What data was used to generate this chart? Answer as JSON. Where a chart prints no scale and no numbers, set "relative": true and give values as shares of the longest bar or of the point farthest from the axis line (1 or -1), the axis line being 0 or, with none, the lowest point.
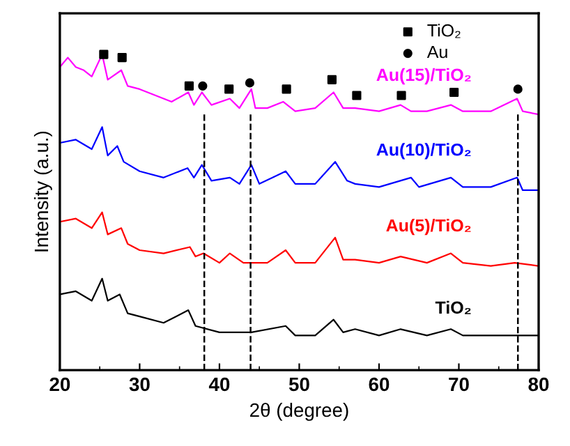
{
  "chart_data": {
    "type": "line",
    "relative": true,
    "xlabel": "2θ (degree)",
    "ylabel": "Intensity (a.u.)",
    "xlim": [
      20,
      80
    ],
    "xticks": [
      20,
      30,
      40,
      50,
      60,
      70,
      80
    ],
    "grid": false,
    "legend": "top right",
    "marker": "none",
    "line_style": "solid",
    "tick_labels": "x",
    "series": [
      {
        "name": "Au(15)/TiO₂",
        "color": "#ff00ff",
        "x": [
          20,
          21,
          22,
          23,
          24,
          25.3,
          26,
          27.7,
          28.5,
          30,
          32,
          34,
          36.1,
          36.8,
          37.8,
          39,
          41.3,
          42.5,
          44,
          44.5,
          46,
          48,
          49.5,
          52,
          54.3,
          55.5,
          57,
          60,
          62.7,
          64,
          66,
          69,
          70.5,
          74,
          77.3,
          78,
          80
        ],
        "values": [
          0.96,
          0.99,
          0.96,
          0.95,
          0.93,
          1.0,
          0.92,
          0.95,
          0.9,
          0.89,
          0.87,
          0.85,
          0.88,
          0.84,
          0.88,
          0.84,
          0.86,
          0.83,
          0.89,
          0.83,
          0.83,
          0.85,
          0.82,
          0.83,
          0.88,
          0.83,
          0.83,
          0.82,
          0.84,
          0.82,
          0.82,
          0.84,
          0.82,
          0.82,
          0.86,
          0.82,
          0.81
        ]
      },
      {
        "name": "Au(10)/TiO₂",
        "color": "#0000ff",
        "x": [
          20,
          22,
          24,
          25.3,
          26,
          27.2,
          28,
          30,
          33,
          36,
          36.8,
          37.8,
          39,
          41.3,
          42.5,
          44,
          45,
          48.3,
          49.5,
          52,
          54.5,
          56,
          57,
          60,
          64,
          65,
          69,
          70.5,
          74,
          77.3,
          78,
          80
        ],
        "values": [
          0.72,
          0.73,
          0.7,
          0.77,
          0.68,
          0.71,
          0.66,
          0.63,
          0.61,
          0.64,
          0.61,
          0.65,
          0.6,
          0.61,
          0.59,
          0.65,
          0.59,
          0.63,
          0.59,
          0.59,
          0.66,
          0.6,
          0.59,
          0.58,
          0.61,
          0.58,
          0.61,
          0.58,
          0.58,
          0.61,
          0.57,
          0.57
        ]
      },
      {
        "name": "Au(5)/TiO₂",
        "color": "#ff0000",
        "x": [
          20,
          22,
          24,
          25.3,
          26,
          27.7,
          28.5,
          30,
          33,
          36.3,
          37,
          38,
          40,
          41.3,
          43,
          46,
          48.3,
          49.5,
          52,
          54.5,
          55.5,
          57,
          60,
          62.7,
          66,
          69,
          70.5,
          74,
          77,
          80
        ],
        "values": [
          0.47,
          0.48,
          0.45,
          0.5,
          0.43,
          0.45,
          0.4,
          0.38,
          0.37,
          0.39,
          0.36,
          0.37,
          0.34,
          0.37,
          0.34,
          0.34,
          0.38,
          0.34,
          0.34,
          0.42,
          0.35,
          0.35,
          0.34,
          0.36,
          0.34,
          0.37,
          0.34,
          0.33,
          0.34,
          0.33
        ]
      },
      {
        "name": "TiO₂",
        "color": "#000000",
        "x": [
          20,
          22,
          24,
          25.3,
          26,
          27.5,
          28.5,
          30,
          33,
          36.1,
          37,
          40,
          44,
          48.3,
          49.5,
          52,
          54.3,
          55.5,
          57,
          60,
          62.7,
          66,
          69,
          70.5,
          75,
          80
        ],
        "values": [
          0.24,
          0.25,
          0.22,
          0.29,
          0.22,
          0.24,
          0.18,
          0.17,
          0.15,
          0.19,
          0.14,
          0.12,
          0.12,
          0.14,
          0.11,
          0.11,
          0.16,
          0.12,
          0.13,
          0.11,
          0.13,
          0.11,
          0.13,
          0.11,
          0.11,
          0.11
        ]
      },
      {
        "name": "TiO₂",
        "type": "scatter",
        "marker": "square",
        "color": "#000000",
        "x": [
          25.5,
          27.8,
          36.2,
          41.2,
          48.4,
          54.1,
          57.2,
          62.8,
          69.4
        ],
        "values": [
          1.0,
          0.99,
          0.9,
          0.89,
          0.89,
          0.92,
          0.87,
          0.87,
          0.88
        ]
      },
      {
        "name": "Au",
        "type": "scatter",
        "marker": "circle",
        "color": "#000000",
        "x": [
          37.9,
          43.8,
          77.4
        ],
        "values": [
          0.9,
          0.91,
          0.89
        ]
      }
    ],
    "ref_lines": [
      {
        "axis": "x",
        "value": 38.1,
        "line_style": "dashed",
        "color": "#000000"
      },
      {
        "axis": "x",
        "value": 43.9,
        "line_style": "dashed",
        "color": "#000000"
      },
      {
        "axis": "x",
        "value": 77.4,
        "line_style": "dashed",
        "color": "#000000"
      }
    ]
  }
}
